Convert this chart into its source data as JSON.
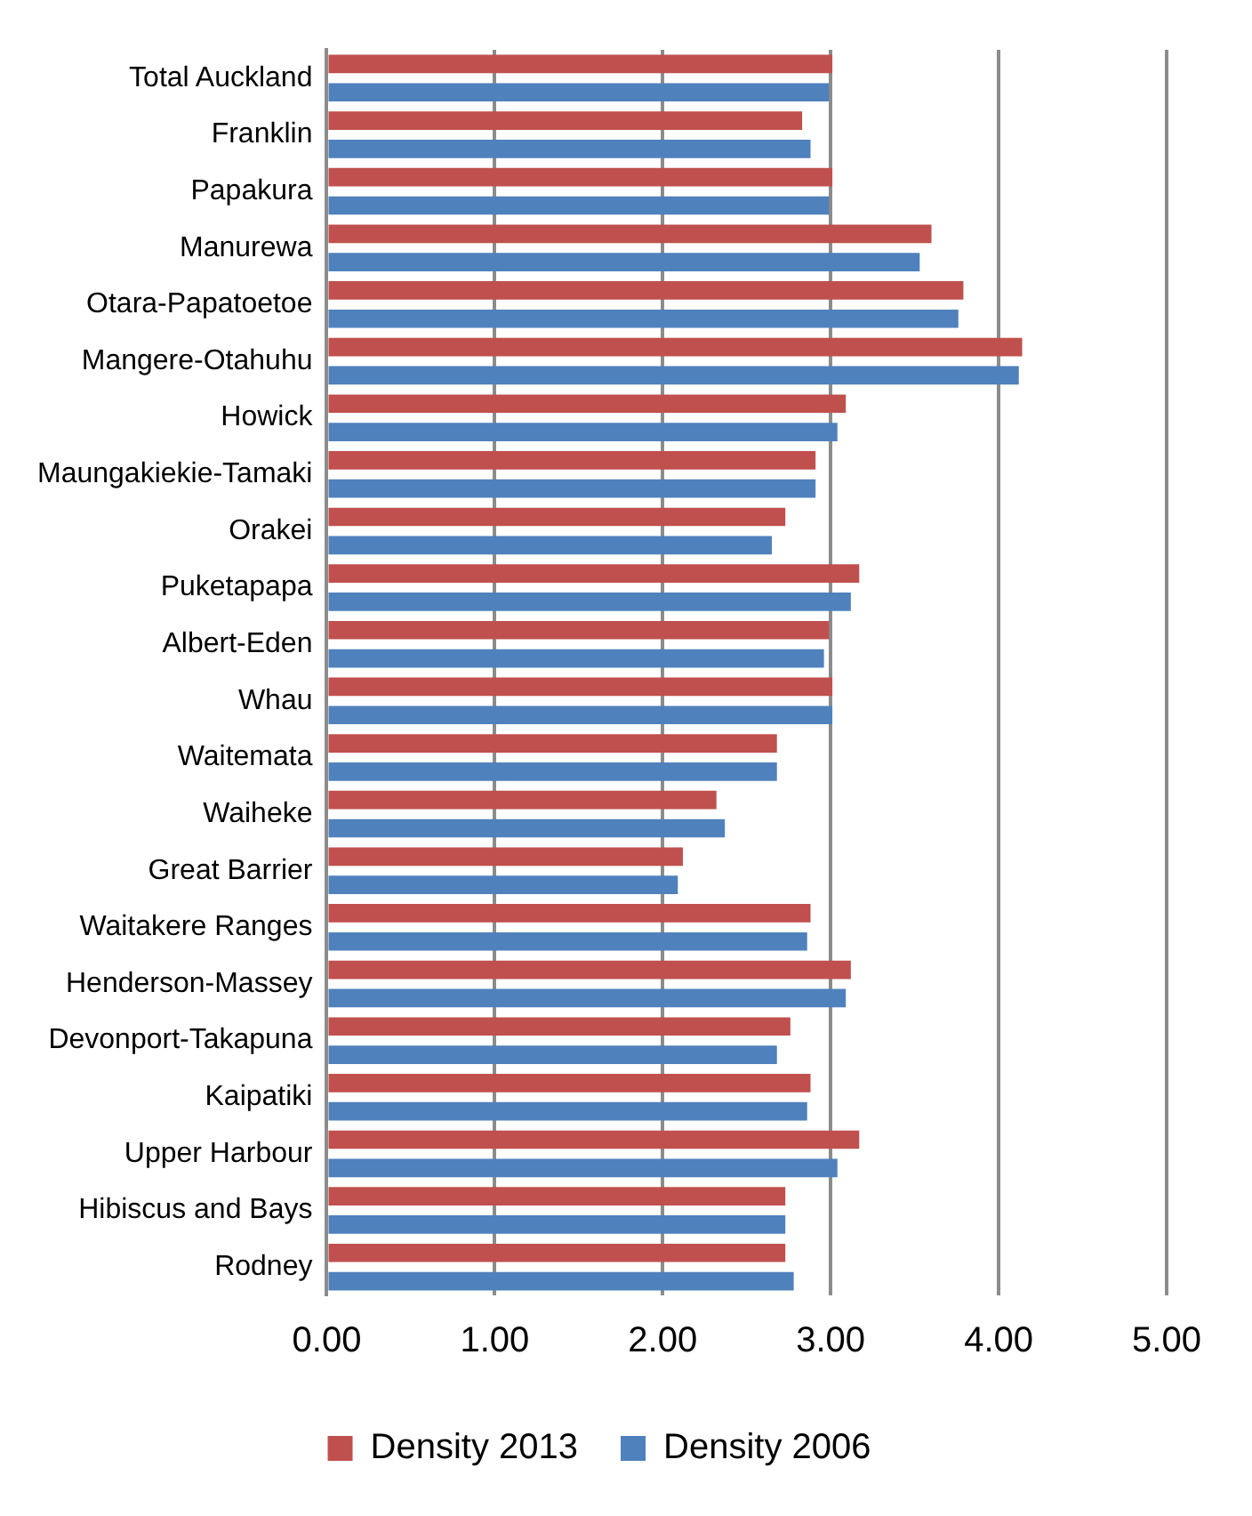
{
  "chart_data": {
    "type": "bar",
    "orientation": "horizontal",
    "categories": [
      "Total Auckland",
      "Franklin",
      "Papakura",
      "Manurewa",
      "Otara-Papatoetoe",
      "Mangere-Otahuhu",
      "Howick",
      "Maungakiekie-Tamaki",
      "Orakei",
      "Puketapapa",
      "Albert-Eden",
      "Whau",
      "Waitemata",
      "Waiheke",
      "Great Barrier",
      "Waitakere Ranges",
      "Henderson-Massey",
      "Devonport-Takapuna",
      "Kaipatiki",
      "Upper Harbour",
      "Hibiscus and Bays",
      "Rodney"
    ],
    "series": [
      {
        "name": "Density 2013",
        "color": "#c0504d",
        "values": [
          3.01,
          2.83,
          3.01,
          3.6,
          3.79,
          4.14,
          3.09,
          2.91,
          2.73,
          3.17,
          2.99,
          3.01,
          2.68,
          2.32,
          2.12,
          2.88,
          3.12,
          2.76,
          2.88,
          3.17,
          2.73,
          2.73
        ]
      },
      {
        "name": "Density 2006",
        "color": "#4f81bd",
        "values": [
          2.99,
          2.88,
          2.99,
          3.53,
          3.76,
          4.12,
          3.04,
          2.91,
          2.65,
          3.12,
          2.96,
          3.01,
          2.68,
          2.37,
          2.09,
          2.86,
          3.09,
          2.68,
          2.86,
          3.04,
          2.73,
          2.78
        ]
      }
    ],
    "xlim": [
      0,
      5
    ],
    "xticks": [
      {
        "value": 0,
        "label": "0.00"
      },
      {
        "value": 1,
        "label": "1.00"
      },
      {
        "value": 2,
        "label": "2.00"
      },
      {
        "value": 3,
        "label": "3.00"
      },
      {
        "value": 4,
        "label": "4.00"
      },
      {
        "value": 5,
        "label": "5.00"
      }
    ],
    "grid": "x",
    "legend": "bottom"
  }
}
